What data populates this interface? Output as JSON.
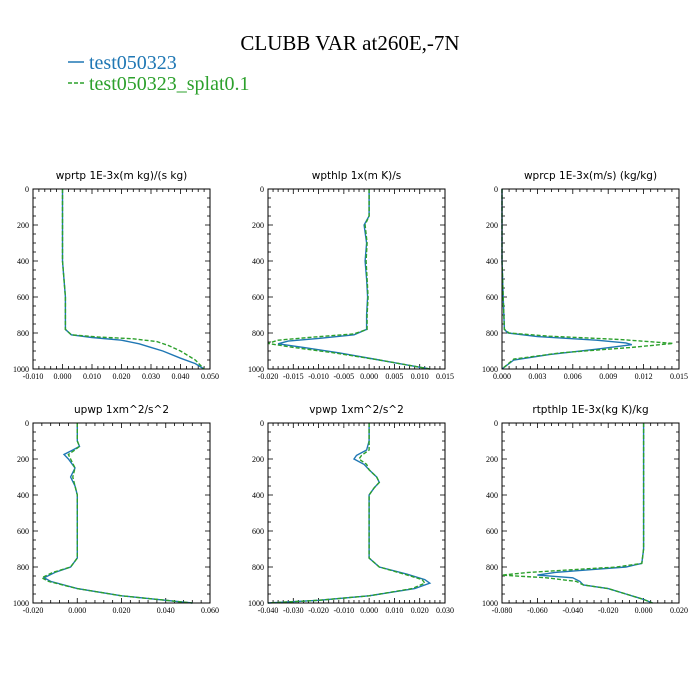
{
  "figure": {
    "title": "CLUBB VAR at260E,-7N",
    "legend": [
      {
        "label": "test050323",
        "color": "#1f77b4",
        "dash": "none"
      },
      {
        "label": "test050323_splat0.1",
        "color": "#2ca02c",
        "dash": "4,2"
      }
    ]
  },
  "chart_data": [
    {
      "type": "line",
      "title": "wprtp  1E-3x(m kg)/(s kg)",
      "xlim": [
        -0.01,
        0.05
      ],
      "xticks": [
        "-0.010",
        "0.000",
        "0.010",
        "0.020",
        "0.030",
        "0.040",
        "0.050"
      ],
      "ylim": [
        0,
        1000
      ],
      "yticks": [
        "0",
        "200",
        "400",
        "600",
        "800",
        "1000"
      ],
      "y_inverted": true,
      "series": [
        {
          "name": "test050323",
          "points": [
            [
              0.0,
              0
            ],
            [
              0.0,
              200
            ],
            [
              0.0,
              400
            ],
            [
              0.001,
              600
            ],
            [
              0.001,
              780
            ],
            [
              0.003,
              810
            ],
            [
              0.01,
              825
            ],
            [
              0.02,
              840
            ],
            [
              0.026,
              860
            ],
            [
              0.03,
              880
            ],
            [
              0.034,
              900
            ],
            [
              0.04,
              940
            ],
            [
              0.045,
              970
            ],
            [
              0.048,
              1000
            ]
          ]
        },
        {
          "name": "test050323_splat0.1",
          "points": [
            [
              0.0,
              0
            ],
            [
              0.0,
              200
            ],
            [
              0.0,
              400
            ],
            [
              0.001,
              600
            ],
            [
              0.001,
              780
            ],
            [
              0.003,
              810
            ],
            [
              0.012,
              822
            ],
            [
              0.024,
              832
            ],
            [
              0.032,
              848
            ],
            [
              0.036,
              870
            ],
            [
              0.04,
              900
            ],
            [
              0.045,
              950
            ],
            [
              0.048,
              1000
            ]
          ]
        }
      ]
    },
    {
      "type": "line",
      "title": "wpthlp  1x(m K)/s",
      "xlim": [
        -0.02,
        0.015
      ],
      "xticks": [
        "-0.020",
        "-0.015",
        "-0.010",
        "-0.005",
        "0.000",
        "0.005",
        "0.010",
        "0.015"
      ],
      "ylim": [
        0,
        1000
      ],
      "yticks": [
        "0",
        "200",
        "400",
        "600",
        "800",
        "1000"
      ],
      "y_inverted": true,
      "series": [
        {
          "name": "test050323",
          "points": [
            [
              0.0,
              0
            ],
            [
              0.0,
              150
            ],
            [
              -0.001,
              200
            ],
            [
              -0.0005,
              300
            ],
            [
              -0.0008,
              400
            ],
            [
              -0.0005,
              500
            ],
            [
              -0.0003,
              600
            ],
            [
              -0.0005,
              700
            ],
            [
              -0.0005,
              780
            ],
            [
              -0.003,
              810
            ],
            [
              -0.01,
              830
            ],
            [
              -0.016,
              845
            ],
            [
              -0.018,
              860
            ],
            [
              -0.013,
              880
            ],
            [
              -0.006,
              910
            ],
            [
              0.002,
              950
            ],
            [
              0.008,
              980
            ],
            [
              0.012,
              1000
            ]
          ]
        },
        {
          "name": "test050323_splat0.1",
          "points": [
            [
              0.0,
              0
            ],
            [
              0.0,
              150
            ],
            [
              -0.0008,
              200
            ],
            [
              -0.0004,
              300
            ],
            [
              -0.0006,
              400
            ],
            [
              -0.0004,
              500
            ],
            [
              -0.0002,
              600
            ],
            [
              -0.0004,
              700
            ],
            [
              -0.0004,
              780
            ],
            [
              -0.003,
              805
            ],
            [
              -0.012,
              825
            ],
            [
              -0.018,
              840
            ],
            [
              -0.02,
              858
            ],
            [
              -0.015,
              880
            ],
            [
              -0.007,
              910
            ],
            [
              0.002,
              950
            ],
            [
              0.008,
              980
            ],
            [
              0.012,
              1000
            ]
          ]
        }
      ]
    },
    {
      "type": "line",
      "title": "wprcp  1E-3x(m/s) (kg/kg)",
      "xlim": [
        0,
        0.015
      ],
      "xticks": [
        "0.000",
        "0.003",
        "0.006",
        "0.009",
        "0.012",
        "0.015"
      ],
      "ylim": [
        0,
        1000
      ],
      "yticks": [
        "0",
        "200",
        "400",
        "600",
        "800",
        "1000"
      ],
      "y_inverted": true,
      "series": [
        {
          "name": "test050323",
          "points": [
            [
              0.0,
              0
            ],
            [
              0.0,
              400
            ],
            [
              0.0001,
              600
            ],
            [
              0.0002,
              780
            ],
            [
              0.0005,
              800
            ],
            [
              0.003,
              820
            ],
            [
              0.008,
              840
            ],
            [
              0.0105,
              855
            ],
            [
              0.011,
              865
            ],
            [
              0.008,
              890
            ],
            [
              0.004,
              920
            ],
            [
              0.001,
              950
            ],
            [
              0.0,
              1000
            ]
          ]
        },
        {
          "name": "test050323_splat0.1",
          "points": [
            [
              0.0,
              0
            ],
            [
              0.0,
              400
            ],
            [
              0.0001,
              600
            ],
            [
              0.0002,
              780
            ],
            [
              0.0006,
              800
            ],
            [
              0.004,
              818
            ],
            [
              0.01,
              836
            ],
            [
              0.0145,
              858
            ],
            [
              0.011,
              880
            ],
            [
              0.005,
              910
            ],
            [
              0.001,
              945
            ],
            [
              0.0,
              1000
            ]
          ]
        }
      ]
    },
    {
      "type": "line",
      "title": "upwp  1xm^2/s^2",
      "xlim": [
        -0.02,
        0.06
      ],
      "xticks": [
        "-0.020",
        "0.000",
        "0.020",
        "0.040",
        "0.060"
      ],
      "ylim": [
        0,
        1000
      ],
      "yticks": [
        "0",
        "200",
        "400",
        "600",
        "800",
        "1000"
      ],
      "y_inverted": true,
      "series": [
        {
          "name": "test050323",
          "points": [
            [
              0.0,
              0
            ],
            [
              0.0,
              100
            ],
            [
              0.001,
              130
            ],
            [
              -0.002,
              150
            ],
            [
              -0.006,
              175
            ],
            [
              -0.004,
              200
            ],
            [
              -0.001,
              250
            ],
            [
              -0.003,
              300
            ],
            [
              -0.001,
              350
            ],
            [
              0.0,
              400
            ],
            [
              0.0,
              600
            ],
            [
              0.0,
              750
            ],
            [
              -0.003,
              800
            ],
            [
              -0.01,
              830
            ],
            [
              -0.015,
              860
            ],
            [
              -0.012,
              880
            ],
            [
              0.0,
              920
            ],
            [
              0.02,
              960
            ],
            [
              0.04,
              985
            ],
            [
              0.052,
              1000
            ]
          ]
        },
        {
          "name": "test050323_splat0.1",
          "points": [
            [
              0.0,
              0
            ],
            [
              0.0,
              100
            ],
            [
              0.001,
              130
            ],
            [
              -0.001,
              150
            ],
            [
              -0.004,
              175
            ],
            [
              -0.003,
              200
            ],
            [
              -0.001,
              250
            ],
            [
              -0.002,
              300
            ],
            [
              -0.001,
              350
            ],
            [
              0.0,
              400
            ],
            [
              0.0,
              600
            ],
            [
              0.0,
              750
            ],
            [
              -0.003,
              800
            ],
            [
              -0.011,
              830
            ],
            [
              -0.016,
              860
            ],
            [
              -0.013,
              880
            ],
            [
              0.0,
              920
            ],
            [
              0.02,
              960
            ],
            [
              0.04,
              985
            ],
            [
              0.052,
              1000
            ]
          ]
        }
      ]
    },
    {
      "type": "line",
      "title": "vpwp  1xm^2/s^2",
      "xlim": [
        -0.04,
        0.03
      ],
      "xticks": [
        "-0.040",
        "-0.030",
        "-0.020",
        "-0.010",
        "0.000",
        "0.010",
        "0.020",
        "0.030"
      ],
      "ylim": [
        0,
        1000
      ],
      "yticks": [
        "0",
        "200",
        "400",
        "600",
        "800",
        "1000"
      ],
      "y_inverted": true,
      "series": [
        {
          "name": "test050323",
          "points": [
            [
              0.0,
              0
            ],
            [
              0.0,
              100
            ],
            [
              -0.001,
              150
            ],
            [
              -0.005,
              180
            ],
            [
              -0.006,
              200
            ],
            [
              -0.002,
              230
            ],
            [
              0.0,
              260
            ],
            [
              0.003,
              300
            ],
            [
              0.004,
              330
            ],
            [
              0.002,
              360
            ],
            [
              0.0,
              400
            ],
            [
              0.0,
              600
            ],
            [
              0.0,
              750
            ],
            [
              0.004,
              800
            ],
            [
              0.015,
              840
            ],
            [
              0.022,
              870
            ],
            [
              0.024,
              890
            ],
            [
              0.018,
              920
            ],
            [
              0.0,
              960
            ],
            [
              -0.02,
              985
            ],
            [
              -0.04,
              1000
            ]
          ]
        },
        {
          "name": "test050323_splat0.1",
          "points": [
            [
              0.0,
              0
            ],
            [
              0.0,
              100
            ],
            [
              0.0,
              150
            ],
            [
              -0.003,
              180
            ],
            [
              -0.004,
              200
            ],
            [
              -0.001,
              230
            ],
            [
              0.0,
              260
            ],
            [
              0.003,
              300
            ],
            [
              0.004,
              330
            ],
            [
              0.002,
              360
            ],
            [
              0.0,
              400
            ],
            [
              0.0,
              600
            ],
            [
              0.0,
              750
            ],
            [
              0.004,
              800
            ],
            [
              0.014,
              840
            ],
            [
              0.021,
              870
            ],
            [
              0.022,
              890
            ],
            [
              0.017,
              920
            ],
            [
              0.0,
              960
            ],
            [
              -0.02,
              985
            ],
            [
              -0.04,
              1000
            ]
          ]
        }
      ]
    },
    {
      "type": "line",
      "title": "rtpthlp  1E-3x(kg K)/kg",
      "xlim": [
        -0.08,
        0.02
      ],
      "xticks": [
        "-0.080",
        "-0.060",
        "-0.040",
        "-0.020",
        "0.000",
        "0.020"
      ],
      "ylim": [
        0,
        1000
      ],
      "yticks": [
        "0",
        "200",
        "400",
        "600",
        "800",
        "1000"
      ],
      "y_inverted": true,
      "series": [
        {
          "name": "test050323",
          "points": [
            [
              0.0,
              0
            ],
            [
              0.0,
              400
            ],
            [
              0.0,
              700
            ],
            [
              -0.001,
              780
            ],
            [
              -0.01,
              800
            ],
            [
              -0.03,
              815
            ],
            [
              -0.05,
              830
            ],
            [
              -0.06,
              845
            ],
            [
              -0.04,
              860
            ],
            [
              -0.036,
              880
            ],
            [
              -0.034,
              900
            ],
            [
              -0.02,
              920
            ],
            [
              -0.01,
              950
            ],
            [
              0.0,
              980
            ],
            [
              0.005,
              1000
            ]
          ]
        },
        {
          "name": "test050323_splat0.1",
          "points": [
            [
              0.0,
              0
            ],
            [
              0.0,
              400
            ],
            [
              0.0,
              700
            ],
            [
              -0.001,
              780
            ],
            [
              -0.015,
              800
            ],
            [
              -0.04,
              815
            ],
            [
              -0.065,
              830
            ],
            [
              -0.08,
              845
            ],
            [
              -0.055,
              860
            ],
            [
              -0.038,
              880
            ],
            [
              -0.034,
              900
            ],
            [
              -0.02,
              920
            ],
            [
              -0.01,
              950
            ],
            [
              0.0,
              980
            ],
            [
              0.005,
              1000
            ]
          ]
        }
      ]
    }
  ]
}
